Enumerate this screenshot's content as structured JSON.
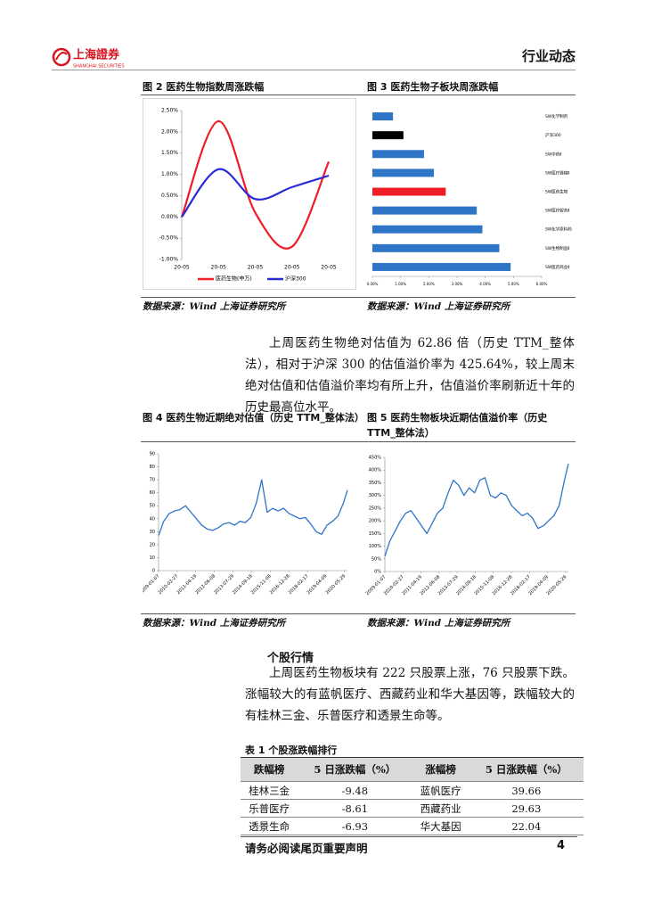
{
  "header": {
    "logo_cn": "上海證券",
    "logo_en": "SHANGHAI SECURITIES",
    "section": "行业动态"
  },
  "paragraphs": [
    "上周医药生物绝对估值为 62.86 倍（历史 TTM_整体法），相对于沪深 300 的估值溢价率为 425.64%，较上周末绝对估值和估值溢价率均有所上升，估值溢价率刷新近十年的历史最高位水平。",
    "上周医药生物板块有 222 只股票上涨，76 只股票下跌。涨幅较大的有蓝帆医疗、西藏药业和华大基因等，跌幅较大的有桂林三金、乐普医疗和透景生命等。"
  ],
  "section_title": "个股行情",
  "table": {
    "title": "表 1 个股涨跌幅排行",
    "header": [
      "跌幅榜",
      "5 日涨跌幅（%）",
      "涨幅榜",
      "5 日涨跌幅（%）"
    ],
    "rows": [
      [
        "桂林三金",
        "-9.48",
        "蓝帆医疗",
        "39.66"
      ],
      [
        "乐普医疗",
        "-8.61",
        "西藏药业",
        "29.63"
      ],
      [
        "透景生命",
        "-6.93",
        "华大基因",
        "22.04"
      ]
    ]
  },
  "footer": {
    "note": "请务必阅读尾页重要声明",
    "page": "4"
  },
  "chart_data": [
    {
      "type": "line",
      "title": "图 2 医药生物指数周涨跌幅",
      "source": "数据来源：Wind 上海证券研究所",
      "categories": [
        "20-05",
        "20-05",
        "20-05",
        "20-05",
        "20-05"
      ],
      "series": [
        {
          "name": "医药生物(申万)",
          "color": "#ee1c25",
          "values": [
            0,
            2.25,
            0.1,
            -0.7,
            1.3
          ]
        },
        {
          "name": "沪深300",
          "color": "#2b2bd6",
          "values": [
            0,
            1.12,
            0.42,
            0.7,
            0.97
          ]
        }
      ],
      "ylim": [
        -1,
        2.5
      ],
      "yticks": [
        {
          "value": -1,
          "label": "-1.00%"
        },
        {
          "value": -0.5,
          "label": "-0.50%"
        },
        {
          "value": 0,
          "label": "0.00%"
        },
        {
          "value": 0.5,
          "label": "0.50%"
        },
        {
          "value": 1,
          "label": "1.00%"
        },
        {
          "value": 1.5,
          "label": "1.50%"
        },
        {
          "value": 2,
          "label": "2.00%"
        },
        {
          "value": 2.5,
          "label": "2.50%"
        }
      ],
      "legend": "bottom"
    },
    {
      "type": "hbar",
      "title": "图 3 医药生物子板块周涨跌幅",
      "source": "数据来源：Wind 上海证券研究所",
      "categories": [
        "SW化学制剂",
        "沪深300",
        "SW中药Ⅱ",
        "SW医疗器械Ⅱ",
        "SW医药生物",
        "SW医疗服务Ⅱ",
        "SW化学原料药",
        "SW生物制品Ⅱ",
        "SW医药商业Ⅱ"
      ],
      "values": [
        0.73,
        1.1,
        1.83,
        2.18,
        2.6,
        3.7,
        3.9,
        4.5,
        4.9
      ],
      "colors": [
        "#2e75c8",
        "#000000",
        "#2e75c8",
        "#2e75c8",
        "#ee1c25",
        "#2e75c8",
        "#2e75c8",
        "#2e75c8",
        "#2e75c8"
      ],
      "xlim": [
        0,
        6
      ],
      "xticks": [
        {
          "value": 0,
          "label": "0.00%"
        },
        {
          "value": 1,
          "label": "1.00%"
        },
        {
          "value": 2,
          "label": "2.00%"
        },
        {
          "value": 3,
          "label": "3.00%"
        },
        {
          "value": 4,
          "label": "4.00%"
        },
        {
          "value": 5,
          "label": "5.00%"
        },
        {
          "value": 6,
          "label": "6.00%"
        }
      ]
    },
    {
      "type": "timeline",
      "title": "图 4 医药生物近期绝对估值（历史 TTM_整体法）",
      "source": "数据来源：Wind 上海证券研究所",
      "x": [
        "2009-01-07",
        "2009-05-01",
        "2009-09-01",
        "2010-01-01",
        "2010-05-01",
        "2010-09-01",
        "2011-01-01",
        "2011-05-01",
        "2011-09-01",
        "2012-01-01",
        "2012-05-01",
        "2012-09-01",
        "2013-01-01",
        "2013-05-01",
        "2013-09-01",
        "2014-01-01",
        "2014-05-01",
        "2014-09-01",
        "2015-01-01",
        "2015-05-01",
        "2015-09-01",
        "2016-01-01",
        "2016-05-01",
        "2016-09-01",
        "2017-01-01",
        "2017-05-01",
        "2017-09-01",
        "2018-01-01",
        "2018-05-01",
        "2018-09-01",
        "2019-01-01",
        "2019-05-01",
        "2019-09-01",
        "2020-01-01",
        "2020-05-01",
        "2020-07-31"
      ],
      "series": [
        {
          "color": "#2e75c8",
          "values": [
            27,
            38,
            44,
            46,
            47,
            50,
            45,
            40,
            35,
            32,
            31,
            33,
            36,
            37,
            35,
            38,
            37,
            41,
            52,
            70,
            45,
            48,
            46,
            48,
            44,
            42,
            40,
            41,
            36,
            30,
            28,
            35,
            38,
            42,
            52,
            62
          ]
        }
      ],
      "xlim": [
        "2009-01-07",
        "2020-07-31"
      ],
      "xticks": [
        "2009-01-07",
        "2010-02-27",
        "2011-04-19",
        "2012-06-08",
        "2013-07-29",
        "2014-09-18",
        "2015-11-08",
        "2016-12-28",
        "2018-02-17",
        "2019-04-09",
        "2020-05-29"
      ],
      "ylim": [
        0,
        90
      ],
      "yticks": [
        0,
        10,
        20,
        30,
        40,
        50,
        60,
        70,
        80,
        90
      ]
    },
    {
      "type": "timeline",
      "title": "图 5 医药生物板块近期估值溢价率（历史 TTM_整体法）",
      "source": "数据来源：Wind 上海证券研究所",
      "x": [
        "2009-01-07",
        "2009-05-01",
        "2009-09-01",
        "2010-01-01",
        "2010-05-01",
        "2010-09-01",
        "2011-01-01",
        "2011-05-01",
        "2011-09-01",
        "2012-01-01",
        "2012-05-01",
        "2012-09-01",
        "2013-01-01",
        "2013-05-01",
        "2013-09-01",
        "2014-01-01",
        "2014-05-01",
        "2014-09-01",
        "2015-01-01",
        "2015-05-01",
        "2015-09-01",
        "2016-01-01",
        "2016-05-01",
        "2016-09-01",
        "2017-01-01",
        "2017-05-01",
        "2017-09-01",
        "2018-01-01",
        "2018-05-01",
        "2018-09-01",
        "2019-01-01",
        "2019-05-01",
        "2019-09-01",
        "2020-01-01",
        "2020-05-01",
        "2020-07-31"
      ],
      "series": [
        {
          "color": "#2e75c8",
          "values": [
            60,
            120,
            160,
            200,
            230,
            240,
            210,
            180,
            150,
            190,
            230,
            250,
            310,
            360,
            340,
            300,
            330,
            310,
            360,
            370,
            300,
            290,
            310,
            300,
            260,
            240,
            220,
            230,
            210,
            170,
            180,
            200,
            220,
            260,
            360,
            425
          ]
        }
      ],
      "xlim": [
        "2009-01-07",
        "2020-07-31"
      ],
      "xticks": [
        "2009-01-07",
        "2010-02-27",
        "2011-04-19",
        "2012-06-08",
        "2013-07-29",
        "2014-09-18",
        "2015-11-08",
        "2016-12-28",
        "2018-02-17",
        "2019-04-09",
        "2020-05-29"
      ],
      "ylim": [
        0,
        450
      ],
      "yticks": [
        {
          "value": 0,
          "label": "0%"
        },
        {
          "value": 50,
          "label": "50%"
        },
        {
          "value": 100,
          "label": "100%"
        },
        {
          "value": 150,
          "label": "150%"
        },
        {
          "value": 200,
          "label": "200%"
        },
        {
          "value": 250,
          "label": "250%"
        },
        {
          "value": 300,
          "label": "300%"
        },
        {
          "value": 350,
          "label": "350%"
        },
        {
          "value": 400,
          "label": "400%"
        },
        {
          "value": 450,
          "label": "450%"
        }
      ]
    }
  ]
}
